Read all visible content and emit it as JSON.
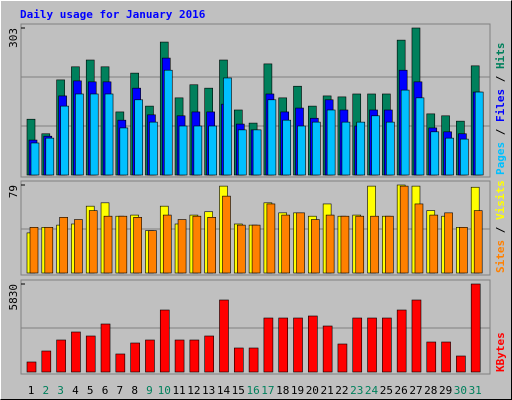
{
  "title": "Daily usage for January 2016",
  "legend_separator": " / ",
  "chart_data": [
    {
      "type": "bar",
      "ylim": [
        0,
        303
      ],
      "yticks": [
        303
      ],
      "series": [
        {
          "name": "Hits",
          "color": "#00805c",
          "values": [
            115,
            85,
            196,
            223,
            237,
            223,
            130,
            210,
            142,
            274,
            159,
            186,
            179,
            237,
            134,
            107,
            229,
            159,
            183,
            142,
            163,
            161,
            167,
            167,
            167,
            278,
            303,
            126,
            122,
            111,
            225
          ]
        },
        {
          "name": "Files",
          "color": "#0000ff",
          "values": [
            72,
            80,
            163,
            194,
            192,
            192,
            113,
            179,
            124,
            241,
            122,
            130,
            130,
            146,
            105,
            93,
            167,
            130,
            138,
            117,
            155,
            134,
            101,
            134,
            134,
            216,
            192,
            97,
            89,
            85,
            171
          ]
        },
        {
          "name": "Pages",
          "color": "#00c0ff",
          "values": [
            66,
            76,
            142,
            167,
            167,
            167,
            97,
            155,
            109,
            216,
            101,
            101,
            101,
            200,
            93,
            93,
            155,
            113,
            101,
            109,
            134,
            109,
            109,
            122,
            109,
            175,
            159,
            89,
            76,
            74,
            171
          ]
        }
      ]
    },
    {
      "type": "bar",
      "ylim": [
        0,
        79
      ],
      "yticks": [
        79
      ],
      "series": [
        {
          "name": "Visits",
          "color": "#ffff00",
          "values": [
            36,
            41,
            43,
            44,
            60,
            63,
            51,
            52,
            38,
            60,
            44,
            52,
            55,
            78,
            44,
            43,
            63,
            54,
            54,
            51,
            62,
            51,
            52,
            78,
            51,
            79,
            78,
            56,
            51,
            41,
            77
          ]
        },
        {
          "name": "Sites",
          "color": "#ff8000",
          "values": [
            41,
            41,
            50,
            48,
            56,
            51,
            51,
            50,
            38,
            52,
            48,
            51,
            50,
            69,
            43,
            43,
            62,
            52,
            54,
            48,
            52,
            51,
            51,
            51,
            51,
            78,
            62,
            52,
            54,
            41,
            56
          ]
        }
      ]
    },
    {
      "type": "bar",
      "ylim": [
        0,
        5830
      ],
      "yticks": [
        5830
      ],
      "categories": [
        "1",
        "2",
        "3",
        "4",
        "5",
        "6",
        "7",
        "8",
        "9",
        "10",
        "11",
        "12",
        "13",
        "14",
        "15",
        "16",
        "17",
        "18",
        "19",
        "20",
        "21",
        "22",
        "23",
        "24",
        "25",
        "26",
        "27",
        "28",
        "29",
        "30",
        "31"
      ],
      "highlight": [
        "2",
        "3",
        "9",
        "10",
        "16",
        "17",
        "23",
        "24",
        "30",
        "31"
      ],
      "highlight_color": "#00805c",
      "series": [
        {
          "name": "KBytes",
          "color": "#ff0000",
          "values": [
            663,
            1391,
            2120,
            2650,
            2385,
            3180,
            1193,
            1921,
            2120,
            4107,
            2120,
            2120,
            2385,
            4770,
            1590,
            1590,
            3577,
            3577,
            3577,
            3710,
            3047,
            1855,
            3577,
            3577,
            3577,
            4107,
            4770,
            1987,
            1987,
            1060,
            5830
          ]
        }
      ]
    }
  ]
}
